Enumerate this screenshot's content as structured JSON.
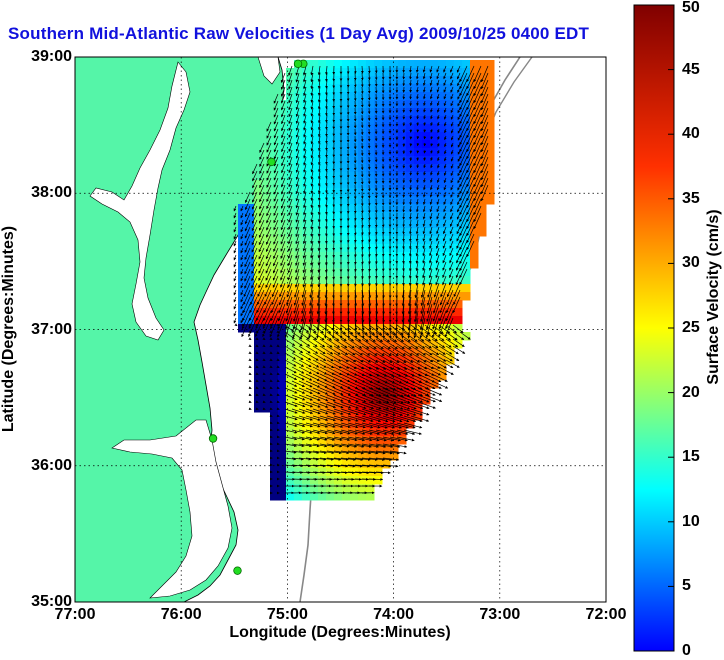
{
  "figure": {
    "title": "Southern Mid-Atlantic Raw Velocities (1 Day Avg) 2009/10/25 0400 EDT",
    "xlabel": "Longitude (Degrees:Minutes)",
    "ylabel": "Latitude (Degrees:Minutes)",
    "colorbar_label": "Surface Velocity (cm/s)"
  },
  "map": {
    "lon_range": [
      -77,
      -72
    ],
    "lat_range": [
      35,
      39
    ],
    "x_ticks": [
      "77:00",
      "76:00",
      "75:00",
      "74:00",
      "73:00",
      "72:00"
    ],
    "y_ticks": [
      "35:00",
      "36:00",
      "37:00",
      "38:00",
      "39:00"
    ],
    "grid": "dotted",
    "land_color": "#55f5a8",
    "water_color": "#ffffff"
  },
  "colorbar": {
    "min": 0,
    "max": 50,
    "ticks": [
      "0",
      "5",
      "10",
      "15",
      "20",
      "25",
      "30",
      "35",
      "40",
      "45",
      "50"
    ],
    "colormap": "jet"
  },
  "stations": [
    {
      "lon": -74.85,
      "lat": 38.95
    },
    {
      "lon": -74.9,
      "lat": 38.95
    },
    {
      "lon": -75.15,
      "lat": 38.23
    },
    {
      "lon": -75.7,
      "lat": 36.2
    },
    {
      "lon": -75.47,
      "lat": 35.23
    }
  ]
}
